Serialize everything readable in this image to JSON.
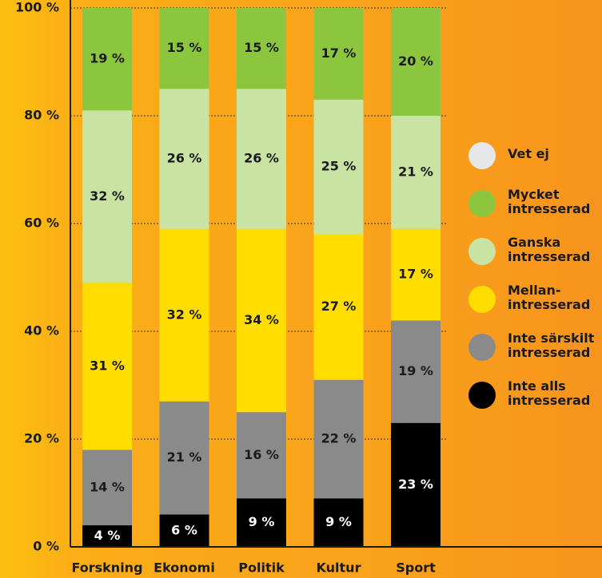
{
  "chart_data": {
    "type": "stacked-bar",
    "categories": [
      "Forskning",
      "Ekonomi",
      "Politik",
      "Kultur",
      "Sport"
    ],
    "series": [
      {
        "name": "Inte alls intresserad",
        "color": "#000000",
        "values": [
          4,
          6,
          9,
          9,
          23
        ],
        "value_labels": [
          "4 %",
          "6 %",
          "9 %",
          "9 %",
          "23 %"
        ]
      },
      {
        "name": "Inte särskilt intresserad",
        "color": "#8a8a8a",
        "values": [
          14,
          21,
          16,
          22,
          19
        ],
        "value_labels": [
          "14 %",
          "21 %",
          "16 %",
          "22 %",
          "19 %"
        ]
      },
      {
        "name": "Mellan-intresserad",
        "color": "#ffdd00",
        "values": [
          31,
          32,
          34,
          27,
          17
        ],
        "value_labels": [
          "31 %",
          "32 %",
          "34 %",
          "27 %",
          "17 %"
        ]
      },
      {
        "name": "Ganska intresserad",
        "color": "#c9e3a3",
        "values": [
          32,
          26,
          26,
          25,
          21
        ],
        "value_labels": [
          "32 %",
          "26 %",
          "26 %",
          "25 %",
          "21 %"
        ]
      },
      {
        "name": "Mycket intresserad",
        "color": "#8cc63f",
        "values": [
          19,
          15,
          15,
          17,
          20
        ],
        "value_labels": [
          "19 %",
          "15 %",
          "15 %",
          "17 %",
          "20 %"
        ]
      },
      {
        "name": "Vet ej",
        "color": "#e6e7e8",
        "values": [
          0,
          0,
          0,
          0,
          0
        ]
      }
    ],
    "ylim": [
      0,
      100
    ],
    "yticks": [
      {
        "value": 0,
        "label": "0 %"
      },
      {
        "value": 20,
        "label": "20 %"
      },
      {
        "value": 40,
        "label": "40 %"
      },
      {
        "value": 60,
        "label": "60 %"
      },
      {
        "value": 80,
        "label": "80 %"
      },
      {
        "value": 100,
        "label": "100 %"
      }
    ],
    "grid": true,
    "legend": "right"
  }
}
